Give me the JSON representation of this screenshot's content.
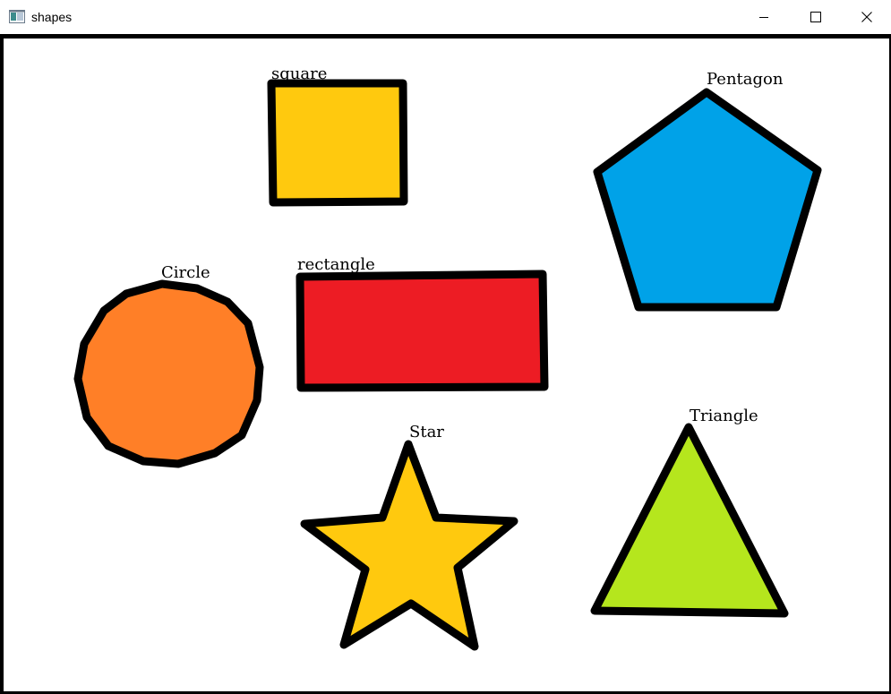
{
  "window": {
    "title": "shapes",
    "icon": "app-window-icon",
    "controls": {
      "minimize": "minimize-icon",
      "maximize": "maximize-icon",
      "close": "close-icon"
    }
  },
  "shapes": {
    "square": {
      "label": "square",
      "fill": "#FFC90E"
    },
    "pentagon": {
      "label": "Pentagon",
      "fill": "#00A2E8"
    },
    "circle": {
      "label": "Circle",
      "fill": "#FF7F27"
    },
    "rectangle": {
      "label": "rectangle",
      "fill": "#ED1C24"
    },
    "star": {
      "label": "Star",
      "fill": "#FFC90E"
    },
    "triangle": {
      "label": "Triangle",
      "fill": "#B5E61D"
    }
  },
  "outline_color": "#000000"
}
